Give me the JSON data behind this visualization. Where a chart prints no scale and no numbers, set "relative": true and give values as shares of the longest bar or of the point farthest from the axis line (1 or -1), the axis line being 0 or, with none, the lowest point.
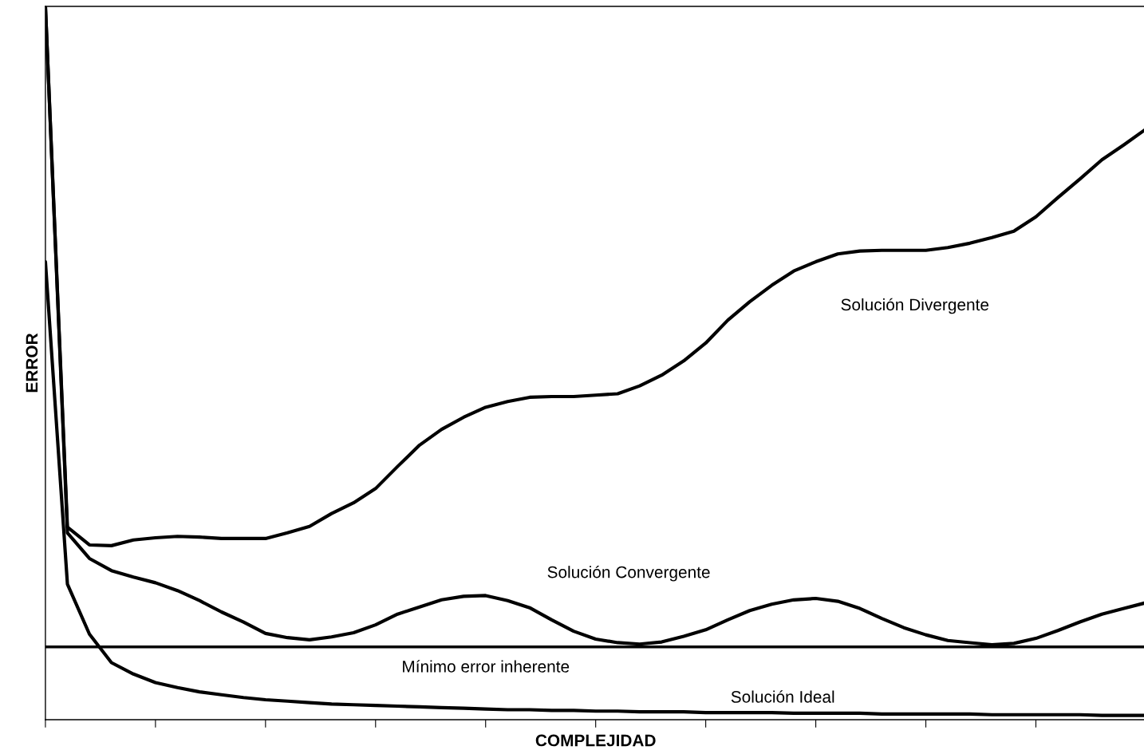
{
  "chart_data": {
    "type": "line",
    "relative": true,
    "xlabel": "COMPLEJIDAD",
    "ylabel": "ERROR",
    "tick_labels": false,
    "grid": false,
    "legend": false,
    "marker": "none",
    "line_style": "solid",
    "categories": [
      null,
      null,
      null,
      null,
      null,
      null,
      null,
      null,
      null,
      null,
      null,
      null,
      null,
      null,
      null,
      null,
      null,
      null,
      null,
      null,
      null,
      null,
      null,
      null,
      null,
      null,
      null,
      null,
      null,
      null,
      null,
      null,
      null,
      null,
      null,
      null,
      null,
      null,
      null,
      null,
      null,
      null,
      null,
      null,
      null,
      null,
      null,
      null,
      null,
      null,
      null
    ],
    "series": [
      {
        "name": "Solución Divergente",
        "color": "#000000",
        "values": [
          1.0,
          0.27,
          0.245,
          0.244,
          0.252,
          0.255,
          0.257,
          0.256,
          0.254,
          0.254,
          0.254,
          0.262,
          0.271,
          0.289,
          0.304,
          0.324,
          0.355,
          0.385,
          0.407,
          0.424,
          0.438,
          0.446,
          0.452,
          0.453,
          0.453,
          0.455,
          0.457,
          0.468,
          0.483,
          0.503,
          0.528,
          0.56,
          0.586,
          0.609,
          0.629,
          0.642,
          0.653,
          0.657,
          0.658,
          0.658,
          0.658,
          0.662,
          0.668,
          0.676,
          0.685,
          0.705,
          0.732,
          0.758,
          0.785,
          0.806,
          0.828
        ]
      },
      {
        "name": "Solución Convergente",
        "color": "#000000",
        "values": [
          1.0,
          0.262,
          0.226,
          0.209,
          0.2,
          0.192,
          0.181,
          0.167,
          0.151,
          0.137,
          0.121,
          0.115,
          0.112,
          0.116,
          0.122,
          0.133,
          0.148,
          0.158,
          0.168,
          0.173,
          0.174,
          0.167,
          0.157,
          0.14,
          0.124,
          0.113,
          0.108,
          0.106,
          0.109,
          0.117,
          0.126,
          0.14,
          0.153,
          0.162,
          0.168,
          0.17,
          0.166,
          0.156,
          0.142,
          0.129,
          0.119,
          0.111,
          0.108,
          0.105,
          0.107,
          0.114,
          0.125,
          0.137,
          0.148,
          0.156,
          0.164
        ]
      },
      {
        "name": "Solución Ideal",
        "color": "#000000",
        "values": [
          0.642,
          0.19,
          0.12,
          0.08,
          0.064,
          0.052,
          0.045,
          0.039,
          0.035,
          0.031,
          0.028,
          0.026,
          0.024,
          0.022,
          0.021,
          0.02,
          0.019,
          0.018,
          0.017,
          0.016,
          0.015,
          0.014,
          0.014,
          0.013,
          0.013,
          0.012,
          0.012,
          0.011,
          0.011,
          0.011,
          0.01,
          0.01,
          0.01,
          0.01,
          0.009,
          0.009,
          0.009,
          0.009,
          0.008,
          0.008,
          0.008,
          0.008,
          0.008,
          0.007,
          0.007,
          0.007,
          0.007,
          0.007,
          0.006,
          0.006,
          0.006
        ]
      }
    ],
    "ref_lines": [
      {
        "axis": "y",
        "value": 0.102,
        "label": "Mínimo error inherente",
        "color": "#000000",
        "line_style": "solid"
      }
    ]
  }
}
